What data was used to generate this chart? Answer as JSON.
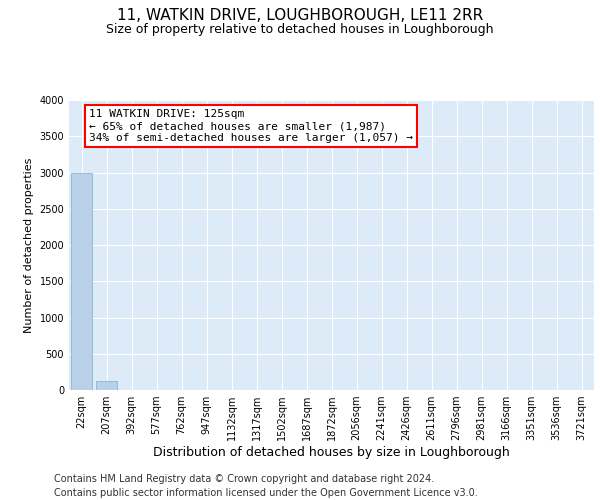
{
  "title": "11, WATKIN DRIVE, LOUGHBOROUGH, LE11 2RR",
  "subtitle": "Size of property relative to detached houses in Loughborough",
  "xlabel": "Distribution of detached houses by size in Loughborough",
  "ylabel": "Number of detached properties",
  "categories": [
    "22sqm",
    "207sqm",
    "392sqm",
    "577sqm",
    "762sqm",
    "947sqm",
    "1132sqm",
    "1317sqm",
    "1502sqm",
    "1687sqm",
    "1872sqm",
    "2056sqm",
    "2241sqm",
    "2426sqm",
    "2611sqm",
    "2796sqm",
    "2981sqm",
    "3166sqm",
    "3351sqm",
    "3536sqm",
    "3721sqm"
  ],
  "values": [
    3000,
    120,
    0,
    0,
    0,
    0,
    0,
    0,
    0,
    0,
    0,
    0,
    0,
    0,
    0,
    0,
    0,
    0,
    0,
    0,
    0
  ],
  "bar_color": "#b8d0e8",
  "bar_edge_color": "#7aafd4",
  "annotation_line1": "11 WATKIN DRIVE: 125sqm",
  "annotation_line2": "← 65% of detached houses are smaller (1,987)",
  "annotation_line3": "34% of semi-detached houses are larger (1,057) →",
  "ylim": [
    0,
    4000
  ],
  "yticks": [
    0,
    500,
    1000,
    1500,
    2000,
    2500,
    3000,
    3500,
    4000
  ],
  "bg_color": "#ddeaf7",
  "grid_color": "#ffffff",
  "footer_line1": "Contains HM Land Registry data © Crown copyright and database right 2024.",
  "footer_line2": "Contains public sector information licensed under the Open Government Licence v3.0.",
  "title_fontsize": 11,
  "subtitle_fontsize": 9,
  "annotation_fontsize": 8,
  "tick_fontsize": 7,
  "ylabel_fontsize": 8,
  "xlabel_fontsize": 9,
  "footer_fontsize": 7
}
